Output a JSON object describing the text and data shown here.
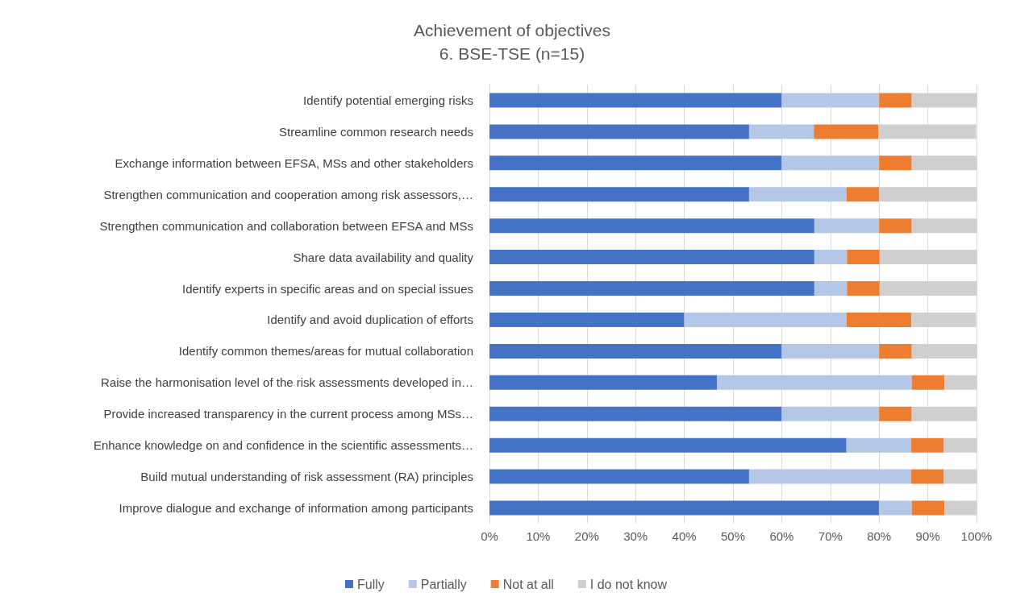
{
  "chart_data": {
    "type": "bar",
    "orientation": "horizontal",
    "stacked": true,
    "title": "Achievement of objectives",
    "subtitle": "6. BSE-TSE (n=15)",
    "categories": [
      "Identify potential emerging risks",
      "Streamline common research needs",
      "Exchange information between EFSA, MSs and other stakeholders",
      "Strengthen communication and cooperation among risk assessors,…",
      "Strengthen communication and collaboration between EFSA and MSs",
      "Share data availability and quality",
      "Identify experts in specific areas and on special issues",
      "Identify and avoid duplication of efforts",
      "Identify common themes/areas for mutual collaboration",
      "Raise the harmonisation level of the risk assessments developed in…",
      "Provide increased transparency in the current process among MSs…",
      "Enhance knowledge on and confidence in the scientific assessments…",
      "Build mutual understanding of risk assessment (RA) principles",
      "Improve dialogue and exchange of information among participants"
    ],
    "series": [
      {
        "name": "Fully",
        "color": "#4472c4",
        "values": [
          60,
          53.3,
          60,
          53.3,
          66.7,
          66.7,
          66.7,
          40,
          60,
          46.7,
          60,
          73.3,
          53.3,
          80
        ]
      },
      {
        "name": "Partially",
        "color": "#b4c7e7",
        "values": [
          20,
          13.3,
          20,
          20,
          13.3,
          6.7,
          6.7,
          33.3,
          20,
          40,
          20,
          13.3,
          33.3,
          6.7
        ]
      },
      {
        "name": "Not at all",
        "color": "#ed7d31",
        "values": [
          6.7,
          13.3,
          6.7,
          6.7,
          6.7,
          6.7,
          6.7,
          13.3,
          6.7,
          6.7,
          6.7,
          6.7,
          6.7,
          6.7
        ]
      },
      {
        "name": "I do not know",
        "color": "#d0cece",
        "values": [
          13.3,
          20,
          13.3,
          20,
          13.3,
          20,
          20,
          13.3,
          13.3,
          6.7,
          13.3,
          6.7,
          6.7,
          6.7
        ]
      }
    ],
    "xlim": [
      0,
      100
    ],
    "xticks": [
      {
        "value": 0,
        "label": "0%"
      },
      {
        "value": 10,
        "label": "10%"
      },
      {
        "value": 20,
        "label": "20%"
      },
      {
        "value": 30,
        "label": "30%"
      },
      {
        "value": 40,
        "label": "40%"
      },
      {
        "value": 50,
        "label": "50%"
      },
      {
        "value": 60,
        "label": "60%"
      },
      {
        "value": 70,
        "label": "70%"
      },
      {
        "value": 80,
        "label": "80%"
      },
      {
        "value": 90,
        "label": "90%"
      },
      {
        "value": 100,
        "label": "100%"
      }
    ],
    "grid": "x",
    "legend": "bottom"
  }
}
